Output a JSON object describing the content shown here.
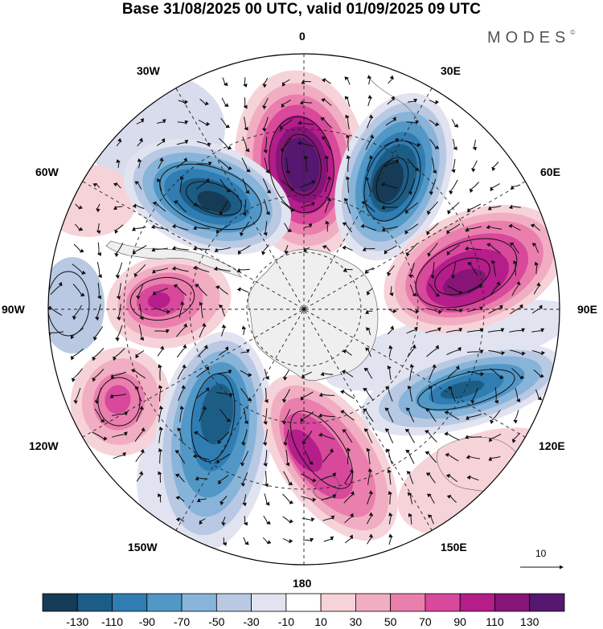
{
  "title": "Base 31/08/2025 00 UTC, valid 01/09/2025 09 UTC",
  "brand": {
    "text": "MODES",
    "mark": "©"
  },
  "map": {
    "projection": "south-polar-stereographic",
    "longitude_labels": {
      "top": "0",
      "bottom": "180",
      "left": "90W",
      "right": "90E",
      "upper_left_1": "30W",
      "upper_left_2": "60W",
      "upper_right_1": "30E",
      "upper_right_2": "60E",
      "lower_left_1": "120W",
      "lower_left_2": "150W",
      "lower_right_1": "120E",
      "lower_right_2": "150E"
    },
    "vector_scale_label": "10",
    "anomaly_centers": [
      {
        "sign": "positive",
        "value": 130,
        "direction": "0"
      },
      {
        "sign": "negative",
        "value": -120,
        "direction": "30E"
      },
      {
        "sign": "negative",
        "value": -110,
        "direction": "45W"
      },
      {
        "sign": "positive",
        "value": 110,
        "direction": "75E"
      },
      {
        "sign": "positive",
        "value": 90,
        "direction": "90W"
      },
      {
        "sign": "negative",
        "value": -90,
        "direction": "110E"
      },
      {
        "sign": "positive",
        "value": 70,
        "direction": "120W"
      },
      {
        "sign": "negative",
        "value": -110,
        "direction": "150W"
      },
      {
        "sign": "positive",
        "value": 90,
        "direction": "165E"
      }
    ]
  },
  "colorbar": {
    "labels": [
      "-130",
      "-110",
      "-90",
      "-70",
      "-50",
      "-30",
      "-10",
      "10",
      "30",
      "50",
      "70",
      "90",
      "110",
      "130"
    ],
    "colors": [
      "#163b57",
      "#1c5d86",
      "#2f7db3",
      "#5298c6",
      "#88b4d9",
      "#b9c9e3",
      "#e1e3f0",
      "#ffffff",
      "#f6d3d8",
      "#f1aec2",
      "#ea7fae",
      "#d8489b",
      "#b41d8a",
      "#861577",
      "#561770"
    ],
    "land_color": "#efefef"
  }
}
